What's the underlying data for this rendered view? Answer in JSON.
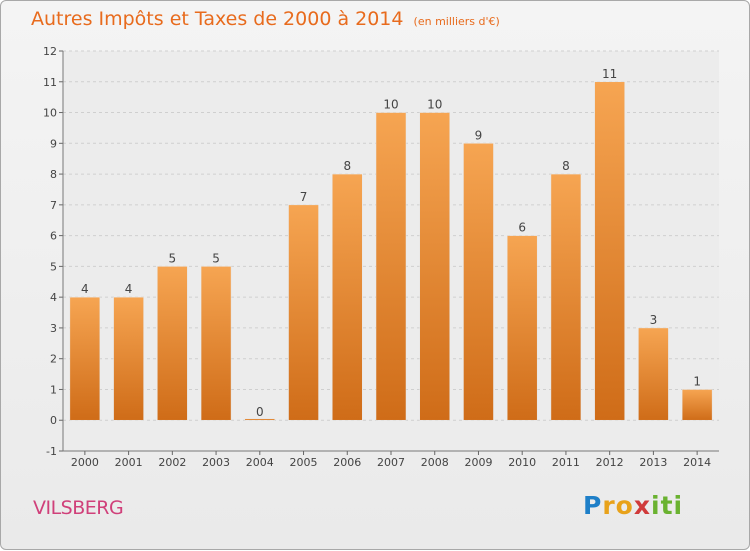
{
  "header": {
    "title": "Autres Impôts et Taxes de 2000 à 2014",
    "unit": "(en milliers d'€)"
  },
  "footer": {
    "place": "VILSBERG",
    "logo": {
      "letters": [
        "P",
        "r",
        "o",
        "x",
        "i",
        "t",
        "i"
      ],
      "colors": [
        "#1e7fc8",
        "#e8a21a",
        "#e8a21a",
        "#d03a3a",
        "#6ab230",
        "#6ab230",
        "#6ab230"
      ]
    }
  },
  "chart_data": {
    "type": "bar",
    "title": "Autres Impôts et Taxes de 2000 à 2014",
    "subtitle": "(en milliers d'€)",
    "categories": [
      "2000",
      "2001",
      "2002",
      "2003",
      "2004",
      "2005",
      "2006",
      "2007",
      "2008",
      "2009",
      "2010",
      "2011",
      "2012",
      "2013",
      "2014"
    ],
    "values": [
      4,
      4,
      5,
      5,
      0,
      7,
      8,
      10,
      10,
      9,
      6,
      8,
      11,
      3,
      1
    ],
    "ylim": [
      -1,
      12
    ],
    "yticks": [
      -1,
      0,
      1,
      2,
      3,
      4,
      5,
      6,
      7,
      8,
      9,
      10,
      11,
      12
    ],
    "grid": "horizontal-dashed",
    "colors": {
      "bar_light": "#f6a552",
      "bar_dark": "#cf6c18",
      "grid": "#cfcfcf"
    }
  }
}
